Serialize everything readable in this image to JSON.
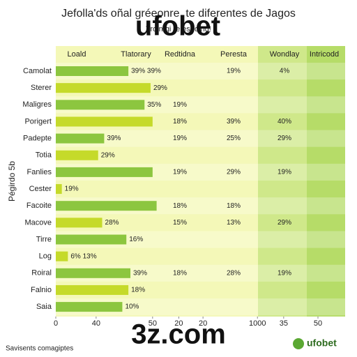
{
  "chart_data": {
    "type": "bar",
    "orientation": "horizontal",
    "title": "Jefolla'ds oñal gréeonre, te diferentes de Jagos",
    "subtitle": "Troin gi re espoing!",
    "ylabel": "Pégirdo 5b",
    "categories": [
      "Camolat",
      "Sterer",
      "Maligres",
      "Porigert",
      "Padepte",
      "Totia",
      "Fanlies",
      "Cester",
      "Facoite",
      "Macove",
      "Tirre",
      "Log",
      "Roiral",
      "Falnio",
      "Saia"
    ],
    "series": [
      {
        "name": "Loald",
        "color": "#8cc63f",
        "values": [
          36,
          47,
          44,
          48,
          24,
          21,
          48,
          3,
          50,
          23,
          35,
          6,
          37,
          36,
          33
        ]
      }
    ],
    "alt_color": "#c5da2a",
    "xlim": [
      0,
      130
    ],
    "xticks": [
      0,
      {
        "value": 20,
        "label": "40"
      },
      {
        "value": 48,
        "label": "50"
      },
      {
        "value": 61,
        "label": "20"
      },
      {
        "value": 73,
        "label": "20"
      },
      {
        "value": 100,
        "label": "1000"
      },
      {
        "value": 113,
        "label": "35"
      },
      {
        "value": 130,
        "label": "50"
      }
    ],
    "columns": [
      {
        "header": "Tlatorary",
        "cells": [
          "39% 39%",
          "29%",
          "35%",
          null,
          "39%",
          "29%",
          null,
          "19%",
          null,
          "28%",
          "16%",
          "6%  13%",
          "39%",
          "18%",
          "10%"
        ]
      },
      {
        "header": "Redtidna",
        "cells": [
          null,
          null,
          "19%",
          "18%",
          "19%",
          null,
          "19%",
          null,
          "18%",
          "15%",
          null,
          null,
          "18%",
          null,
          null
        ]
      },
      {
        "header": "Peresta",
        "cells": [
          "19%",
          null,
          null,
          "39%",
          "25%",
          null,
          "29%",
          null,
          "18%",
          "13%",
          null,
          null,
          "28%",
          null,
          null
        ]
      },
      {
        "header": "Wondlay",
        "cells": [
          "4%",
          null,
          null,
          "40%",
          "29%",
          null,
          "19%",
          null,
          null,
          "29%",
          null,
          null,
          "19%",
          null,
          null
        ]
      },
      {
        "header": "Intricodd",
        "cells": [
          null,
          null,
          null,
          null,
          null,
          null,
          null,
          null,
          null,
          null,
          null,
          null,
          null,
          null,
          null
        ]
      }
    ],
    "watermarks": [
      "ufobet",
      "3z.com"
    ],
    "footer": "Savisents comagiptes",
    "logo": "ufobet"
  }
}
